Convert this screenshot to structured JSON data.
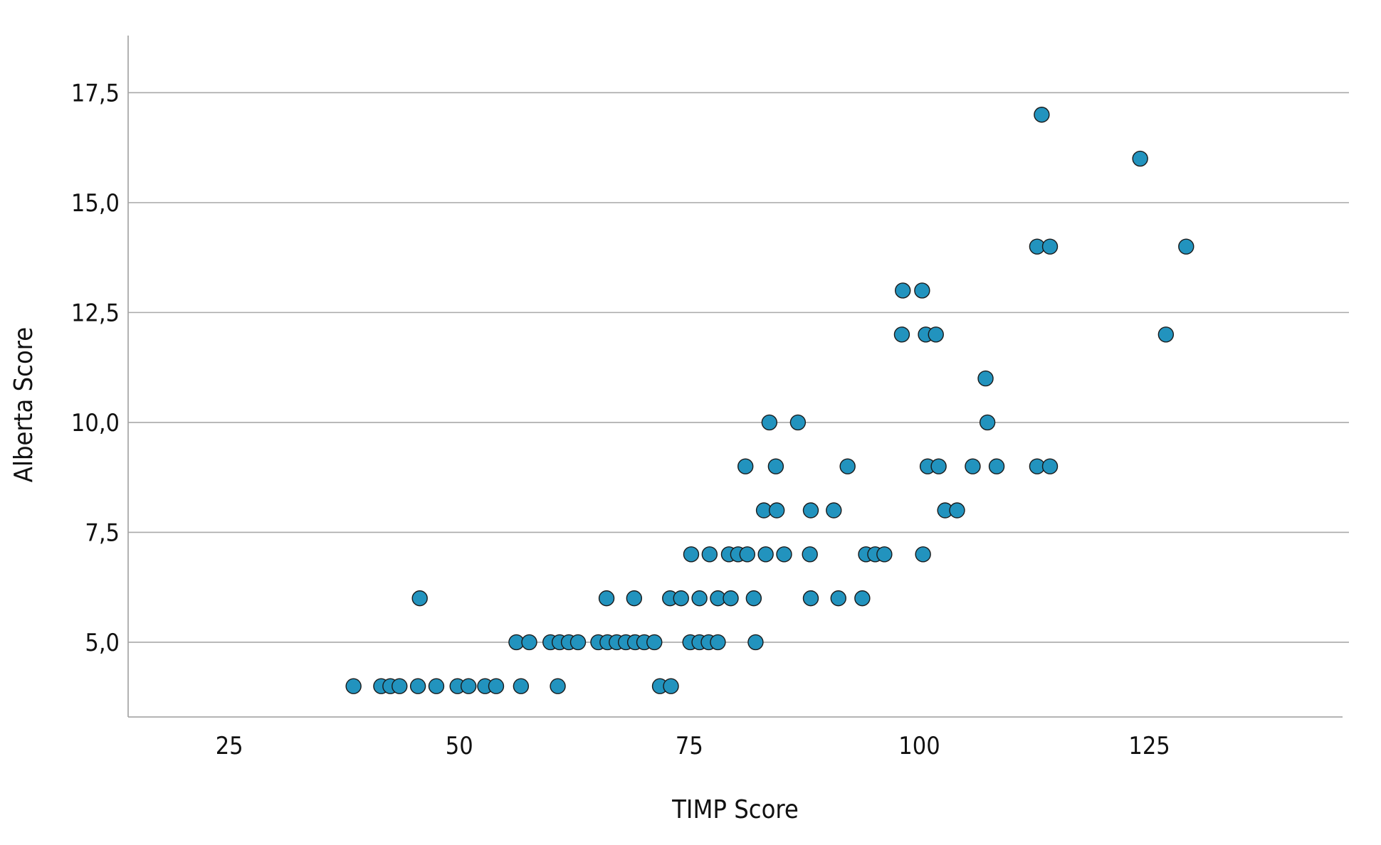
{
  "chart_data": {
    "type": "scatter",
    "xlabel": "TIMP Score",
    "ylabel": "Alberta Score",
    "xlim": [
      14,
      146
    ],
    "ylim": [
      3.3,
      18.8
    ],
    "xticks": [
      {
        "value": 25,
        "label": "25"
      },
      {
        "value": 50,
        "label": "50"
      },
      {
        "value": 75,
        "label": "75"
      },
      {
        "value": 100,
        "label": "100"
      },
      {
        "value": 125,
        "label": "125"
      }
    ],
    "yticks": [
      {
        "value": 5,
        "label": "5,0"
      },
      {
        "value": 7.5,
        "label": "7,5"
      },
      {
        "value": 10,
        "label": "10,0"
      },
      {
        "value": 12.5,
        "label": "12,5"
      },
      {
        "value": 15,
        "label": "15,0"
      },
      {
        "value": 17.5,
        "label": "17,5"
      }
    ],
    "grid": {
      "y": true,
      "x": false
    },
    "point_color": "#2293be",
    "series": [
      {
        "points": [
          [
            38.5,
            4
          ],
          [
            41.5,
            4
          ],
          [
            42.5,
            4
          ],
          [
            43.5,
            4
          ],
          [
            45.5,
            4
          ],
          [
            47.5,
            4
          ],
          [
            49.8,
            4
          ],
          [
            51,
            4
          ],
          [
            52.8,
            4
          ],
          [
            54,
            4
          ],
          [
            56.7,
            4
          ],
          [
            60.7,
            4
          ],
          [
            71.8,
            4
          ],
          [
            73,
            4
          ],
          [
            45.7,
            6
          ],
          [
            56.2,
            5
          ],
          [
            57.6,
            5
          ],
          [
            59.9,
            5
          ],
          [
            60.9,
            5
          ],
          [
            61.9,
            5
          ],
          [
            62.9,
            5
          ],
          [
            65.1,
            5
          ],
          [
            66.1,
            5
          ],
          [
            67.1,
            5
          ],
          [
            68.1,
            5
          ],
          [
            69.1,
            5
          ],
          [
            70.1,
            5
          ],
          [
            71.2,
            5
          ],
          [
            75.1,
            5
          ],
          [
            76.1,
            5
          ],
          [
            77.1,
            5
          ],
          [
            78.1,
            5
          ],
          [
            82.2,
            5
          ],
          [
            66,
            6
          ],
          [
            69,
            6
          ],
          [
            72.9,
            6
          ],
          [
            74.1,
            6
          ],
          [
            76.1,
            6
          ],
          [
            78.1,
            6
          ],
          [
            79.5,
            6
          ],
          [
            82,
            6
          ],
          [
            88.2,
            6
          ],
          [
            91.2,
            6
          ],
          [
            93.8,
            6
          ],
          [
            75.2,
            7
          ],
          [
            77.2,
            7
          ],
          [
            79.3,
            7
          ],
          [
            80.3,
            7
          ],
          [
            81.3,
            7
          ],
          [
            83.3,
            7
          ],
          [
            85.3,
            7
          ],
          [
            88.1,
            7
          ],
          [
            94.2,
            7
          ],
          [
            95.2,
            7
          ],
          [
            96.2,
            7
          ],
          [
            100.4,
            7
          ],
          [
            83.1,
            8
          ],
          [
            84.5,
            8
          ],
          [
            88.2,
            8
          ],
          [
            90.7,
            8
          ],
          [
            102.8,
            8
          ],
          [
            104.1,
            8
          ],
          [
            81.1,
            9
          ],
          [
            84.4,
            9
          ],
          [
            92.2,
            9
          ],
          [
            100.9,
            9
          ],
          [
            102.1,
            9
          ],
          [
            105.8,
            9
          ],
          [
            108.4,
            9
          ],
          [
            112.8,
            9
          ],
          [
            114.2,
            9
          ],
          [
            83.7,
            10
          ],
          [
            86.8,
            10
          ],
          [
            107.4,
            10
          ],
          [
            107.2,
            11
          ],
          [
            98.1,
            12
          ],
          [
            100.7,
            12
          ],
          [
            101.8,
            12
          ],
          [
            126.8,
            12
          ],
          [
            98.2,
            13
          ],
          [
            100.3,
            13
          ],
          [
            112.8,
            14
          ],
          [
            114.2,
            14
          ],
          [
            129,
            14
          ],
          [
            124,
            16
          ],
          [
            113.3,
            17
          ]
        ]
      }
    ]
  }
}
